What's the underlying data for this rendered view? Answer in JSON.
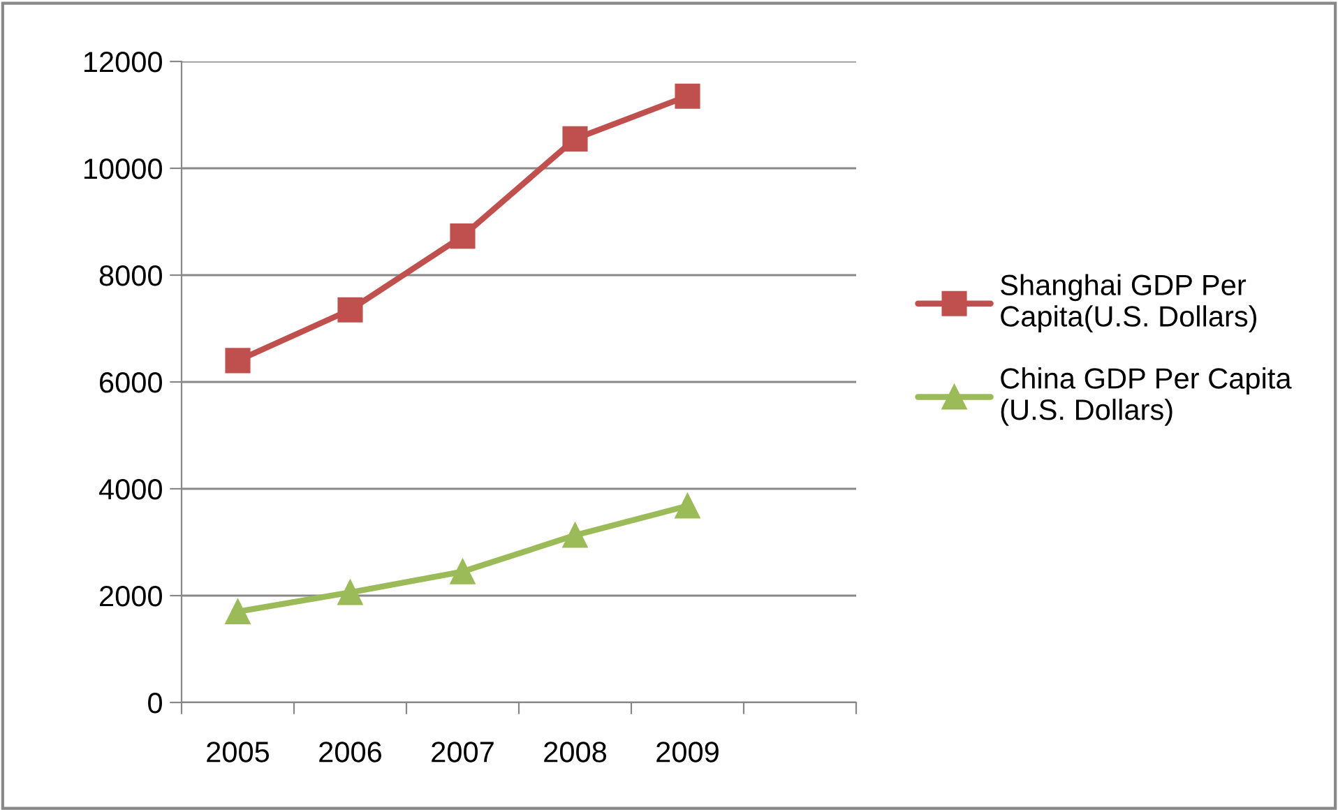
{
  "chart_data": {
    "type": "line",
    "categories": [
      "2005",
      "2006",
      "2007",
      "2008",
      "2009",
      null
    ],
    "series": [
      {
        "name": "Shanghai GDP Per Capita(U.S. Dollars)",
        "color": "#c0504d",
        "marker": "square",
        "values": [
          6400,
          7350,
          8730,
          10550,
          11350,
          null
        ]
      },
      {
        "name": "China GDP Per Capita (U.S. Dollars)",
        "color": "#9bbb59",
        "marker": "triangle",
        "values": [
          1700,
          2060,
          2450,
          3130,
          3680,
          null
        ]
      }
    ],
    "ylim": [
      0,
      12000
    ],
    "yticks": [
      0,
      2000,
      4000,
      6000,
      8000,
      10000,
      12000
    ],
    "grid": "y",
    "legend": "right",
    "line_style": "solid"
  }
}
